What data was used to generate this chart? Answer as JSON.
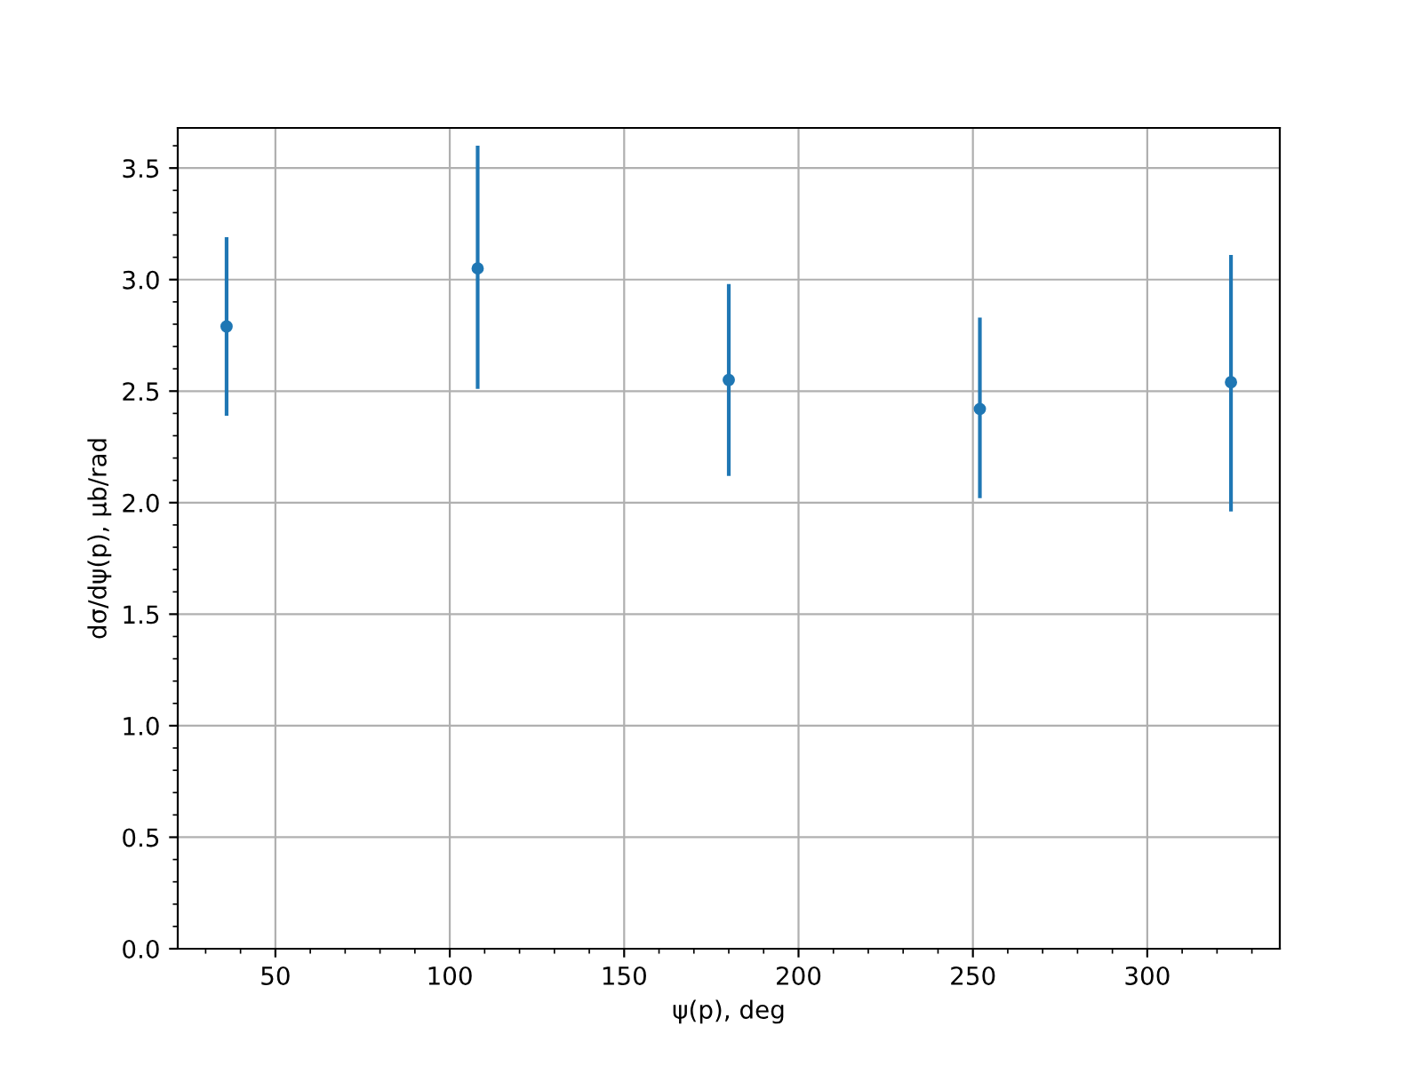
{
  "chart_data": {
    "type": "scatter",
    "xlabel": "ψ(p), deg",
    "ylabel": "dσ/dψ(p), μb/rad",
    "x": [
      36,
      108,
      180,
      252,
      324
    ],
    "values": [
      2.79,
      3.05,
      2.55,
      2.42,
      2.54
    ],
    "errors": [
      [
        2.39,
        3.19
      ],
      [
        2.51,
        3.6
      ],
      [
        2.12,
        2.98
      ],
      [
        2.02,
        2.83
      ],
      [
        1.96,
        3.11
      ]
    ],
    "color": "#1f77b4",
    "marker": "circle",
    "xlim": [
      22,
      338
    ],
    "xticks": [
      50,
      100,
      150,
      200,
      250,
      300
    ],
    "ylim": [
      0,
      3.68
    ],
    "yticks": [
      {
        "value": 0,
        "label": "0.0"
      },
      0.5,
      {
        "value": 1,
        "label": "1.0"
      },
      1.5,
      {
        "value": 2,
        "label": "2.0"
      },
      2.5,
      {
        "value": 3,
        "label": "3.0"
      },
      3.5
    ],
    "grid": true
  }
}
